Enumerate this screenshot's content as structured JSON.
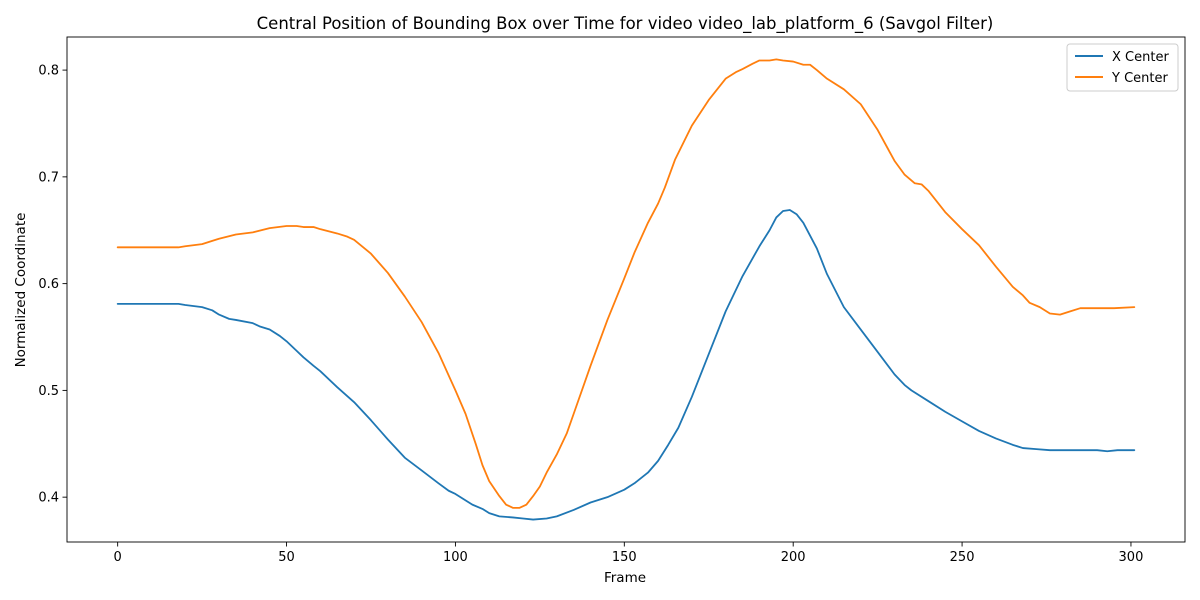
{
  "chart_data": {
    "type": "line",
    "title": "Central Position of Bounding Box over Time for video video_lab_platform_6 (Savgol Filter)",
    "xlabel": "Frame",
    "ylabel": "Normalized Coordinate",
    "xlim": [
      -15,
      316
    ],
    "ylim": [
      0.358,
      0.831
    ],
    "xticks": [
      0,
      50,
      100,
      150,
      200,
      250,
      300
    ],
    "xtick_labels": [
      "0",
      "50",
      "100",
      "150",
      "200",
      "250",
      "300"
    ],
    "yticks": [
      0.4,
      0.5,
      0.6,
      0.7,
      0.8
    ],
    "ytick_labels": [
      "0.4",
      "0.5",
      "0.6",
      "0.7",
      "0.8"
    ],
    "grid": false,
    "legend_position": "top-right",
    "series": [
      {
        "name": "X Center",
        "color": "#1f77b4",
        "x": [
          0,
          5,
          10,
          15,
          18,
          20,
          25,
          28,
          30,
          33,
          35,
          40,
          42,
          45,
          48,
          50,
          53,
          55,
          58,
          60,
          65,
          70,
          75,
          80,
          85,
          90,
          95,
          98,
          100,
          105,
          108,
          110,
          113,
          117,
          120,
          123,
          127,
          130,
          135,
          140,
          145,
          150,
          153,
          157,
          160,
          163,
          166,
          170,
          175,
          180,
          185,
          190,
          193,
          195,
          197,
          199,
          201,
          203,
          207,
          210,
          215,
          220,
          225,
          230,
          233,
          235,
          240,
          245,
          250,
          255,
          260,
          265,
          268,
          272,
          276,
          280,
          285,
          290,
          293,
          296,
          301
        ],
        "y": [
          0.581,
          0.581,
          0.581,
          0.581,
          0.581,
          0.58,
          0.578,
          0.575,
          0.571,
          0.567,
          0.566,
          0.563,
          0.56,
          0.557,
          0.551,
          0.546,
          0.537,
          0.531,
          0.523,
          0.518,
          0.503,
          0.489,
          0.472,
          0.454,
          0.437,
          0.425,
          0.413,
          0.406,
          0.403,
          0.393,
          0.389,
          0.385,
          0.382,
          0.381,
          0.38,
          0.379,
          0.38,
          0.382,
          0.388,
          0.395,
          0.4,
          0.407,
          0.413,
          0.423,
          0.434,
          0.449,
          0.465,
          0.494,
          0.534,
          0.574,
          0.607,
          0.635,
          0.65,
          0.662,
          0.668,
          0.669,
          0.665,
          0.657,
          0.633,
          0.609,
          0.578,
          0.557,
          0.536,
          0.515,
          0.505,
          0.5,
          0.49,
          0.48,
          0.471,
          0.462,
          0.455,
          0.449,
          0.446,
          0.445,
          0.444,
          0.444,
          0.444,
          0.444,
          0.443,
          0.444,
          0.444
        ]
      },
      {
        "name": "Y Center",
        "color": "#ff7f0e",
        "x": [
          0,
          5,
          10,
          15,
          18,
          20,
          25,
          28,
          30,
          35,
          40,
          45,
          50,
          53,
          55,
          58,
          60,
          65,
          68,
          70,
          75,
          80,
          85,
          90,
          95,
          100,
          103,
          106,
          108,
          110,
          113,
          115,
          117,
          119,
          121,
          123,
          125,
          127,
          130,
          133,
          135,
          140,
          145,
          150,
          153,
          157,
          160,
          162,
          165,
          170,
          175,
          180,
          183,
          185,
          188,
          190,
          193,
          195,
          197,
          200,
          203,
          205,
          207,
          210,
          215,
          220,
          225,
          230,
          233,
          236,
          238,
          240,
          245,
          250,
          255,
          260,
          265,
          268,
          270,
          273,
          276,
          279,
          282,
          285,
          290,
          295,
          301
        ],
        "y": [
          0.634,
          0.634,
          0.634,
          0.634,
          0.634,
          0.635,
          0.637,
          0.64,
          0.642,
          0.646,
          0.648,
          0.652,
          0.654,
          0.654,
          0.653,
          0.653,
          0.651,
          0.647,
          0.644,
          0.641,
          0.628,
          0.61,
          0.588,
          0.564,
          0.535,
          0.5,
          0.478,
          0.45,
          0.43,
          0.415,
          0.401,
          0.393,
          0.39,
          0.39,
          0.393,
          0.401,
          0.41,
          0.423,
          0.44,
          0.46,
          0.478,
          0.523,
          0.566,
          0.605,
          0.629,
          0.657,
          0.675,
          0.69,
          0.716,
          0.748,
          0.772,
          0.792,
          0.798,
          0.801,
          0.806,
          0.809,
          0.809,
          0.81,
          0.809,
          0.808,
          0.805,
          0.805,
          0.8,
          0.792,
          0.782,
          0.768,
          0.744,
          0.715,
          0.702,
          0.694,
          0.693,
          0.687,
          0.667,
          0.651,
          0.636,
          0.616,
          0.597,
          0.589,
          0.582,
          0.578,
          0.572,
          0.571,
          0.574,
          0.577,
          0.577,
          0.577,
          0.578
        ]
      }
    ]
  }
}
